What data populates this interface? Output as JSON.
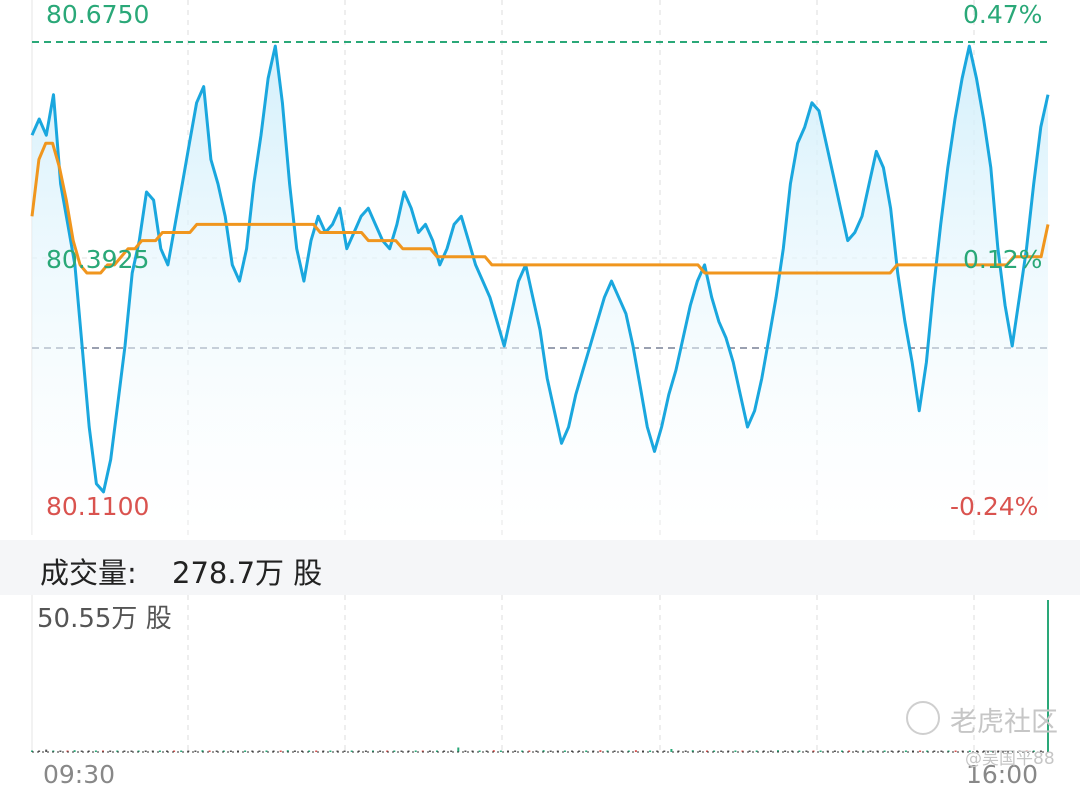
{
  "chart_data": [
    {
      "type": "line",
      "title": "",
      "y_axis_left_labels": [
        "80.6750",
        "80.3925",
        "80.1100"
      ],
      "y_axis_right_labels": [
        "0.47%",
        "0.12%",
        "-0.24%"
      ],
      "ylim": [
        80.11,
        80.675
      ],
      "reference_line_high": 80.675,
      "prev_close_line": 80.2975,
      "series": [
        {
          "color": "#1aa7de",
          "fill": "#e6f5fc",
          "values": [
            80.56,
            80.58,
            80.56,
            80.61,
            80.5,
            80.45,
            80.4,
            80.3,
            80.2,
            80.13,
            80.12,
            80.16,
            80.23,
            80.3,
            80.39,
            80.43,
            80.49,
            80.48,
            80.42,
            80.4,
            80.45,
            80.5,
            80.55,
            80.6,
            80.62,
            80.53,
            80.5,
            80.46,
            80.4,
            80.38,
            80.42,
            80.5,
            80.56,
            80.63,
            80.67,
            80.6,
            80.5,
            80.42,
            80.38,
            80.43,
            80.46,
            80.44,
            80.45,
            80.47,
            80.42,
            80.44,
            80.46,
            80.47,
            80.45,
            80.43,
            80.42,
            80.45,
            80.49,
            80.47,
            80.44,
            80.45,
            80.43,
            80.4,
            80.42,
            80.45,
            80.46,
            80.43,
            80.4,
            80.38,
            80.36,
            80.33,
            80.3,
            80.34,
            80.38,
            80.4,
            80.36,
            80.32,
            80.26,
            80.22,
            80.18,
            80.2,
            80.24,
            80.27,
            80.3,
            80.33,
            80.36,
            80.38,
            80.36,
            80.34,
            80.3,
            80.25,
            80.2,
            80.17,
            80.2,
            80.24,
            80.27,
            80.31,
            80.35,
            80.38,
            80.4,
            80.36,
            80.33,
            80.31,
            80.28,
            80.24,
            80.2,
            80.22,
            80.26,
            80.31,
            80.36,
            80.42,
            80.5,
            80.55,
            80.57,
            80.6,
            80.59,
            80.55,
            80.51,
            80.47,
            80.43,
            80.44,
            80.46,
            80.5,
            80.54,
            80.52,
            80.47,
            80.39,
            80.33,
            80.28,
            80.22,
            80.28,
            80.37,
            80.45,
            80.52,
            80.58,
            80.63,
            80.67,
            80.63,
            80.58,
            80.52,
            80.42,
            80.35,
            80.3,
            80.36,
            80.42,
            80.5,
            80.57,
            80.61
          ],
          "note": ""
        },
        {
          "color": "#f0961e",
          "values": [
            80.46,
            80.53,
            80.55,
            80.55,
            80.52,
            80.48,
            80.43,
            80.4,
            80.39,
            80.39,
            80.39,
            80.4,
            80.4,
            80.41,
            80.42,
            80.42,
            80.43,
            80.43,
            80.43,
            80.44,
            80.44,
            80.44,
            80.44,
            80.44,
            80.45,
            80.45,
            80.45,
            80.45,
            80.45,
            80.45,
            80.45,
            80.45,
            80.45,
            80.45,
            80.45,
            80.45,
            80.45,
            80.45,
            80.45,
            80.45,
            80.45,
            80.45,
            80.44,
            80.44,
            80.44,
            80.44,
            80.44,
            80.44,
            80.44,
            80.43,
            80.43,
            80.43,
            80.43,
            80.43,
            80.42,
            80.42,
            80.42,
            80.42,
            80.42,
            80.41,
            80.41,
            80.41,
            80.41,
            80.41,
            80.41,
            80.41,
            80.41,
            80.4,
            80.4,
            80.4,
            80.4,
            80.4,
            80.4,
            80.4,
            80.4,
            80.4,
            80.4,
            80.4,
            80.4,
            80.4,
            80.4,
            80.4,
            80.4,
            80.4,
            80.4,
            80.4,
            80.4,
            80.4,
            80.4,
            80.4,
            80.4,
            80.4,
            80.4,
            80.4,
            80.4,
            80.4,
            80.4,
            80.4,
            80.39,
            80.39,
            80.39,
            80.39,
            80.39,
            80.39,
            80.39,
            80.39,
            80.39,
            80.39,
            80.39,
            80.39,
            80.39,
            80.39,
            80.39,
            80.39,
            80.39,
            80.39,
            80.39,
            80.39,
            80.39,
            80.39,
            80.39,
            80.39,
            80.39,
            80.39,
            80.39,
            80.39,
            80.4,
            80.4,
            80.4,
            80.4,
            80.4,
            80.4,
            80.4,
            80.4,
            80.4,
            80.4,
            80.4,
            80.4,
            80.4,
            80.4,
            80.4,
            80.4,
            80.4,
            80.41,
            80.41,
            80.41,
            80.41,
            80.41,
            80.45
          ]
        }
      ],
      "x_labels": [
        "09:30",
        "16:00"
      ],
      "grid": true
    },
    {
      "type": "bar",
      "title": "成交量:",
      "total_volume": "278.7万 股",
      "max_label": "50.55万 股",
      "values": [
        0.4,
        0.3,
        0.8,
        0.3,
        0.5,
        0.4,
        0.6,
        0.3,
        0.4,
        0.3,
        0.5,
        0.3,
        0.4,
        0.3,
        0.3,
        0.4,
        0.5,
        0.3,
        0.3,
        0.4,
        0.4,
        0.3,
        0.5,
        0.4,
        0.6,
        0.3,
        0.2,
        0.4,
        0.3,
        0.5,
        0.3,
        0.4,
        0.3,
        0.4,
        0.5,
        0.3,
        0.6,
        0.3,
        0.4,
        0.3,
        0.3,
        0.4,
        0.5,
        0.4,
        0.3,
        0.3,
        0.4,
        0.5,
        0.4,
        0.3,
        0.3,
        0.4,
        0.3,
        0.5,
        0.3,
        0.4,
        0.3,
        0.3,
        0.4,
        0.5,
        1.5,
        0.4,
        0.3,
        0.5,
        0.4,
        0.6,
        0.4,
        0.3,
        0.4,
        0.5,
        0.4,
        0.3,
        0.6,
        0.4,
        0.5,
        0.3,
        0.4,
        0.4,
        0.3,
        0.5,
        0.6,
        0.4,
        0.3,
        0.4,
        0.5,
        0.6,
        0.4,
        0.3,
        0.4,
        0.5,
        1.0,
        0.4,
        0.3,
        0.6,
        0.4,
        0.5,
        0.3,
        0.4,
        0.5,
        0.4,
        0.3,
        0.4,
        0.5,
        0.3,
        0.4,
        0.6,
        0.4,
        0.3,
        0.5,
        0.4,
        0.3,
        0.4,
        0.5,
        0.3,
        0.4,
        0.3,
        0.4,
        0.5,
        0.3,
        0.4,
        0.3,
        0.4,
        0.5,
        0.3,
        0.4,
        0.3,
        0.4,
        0.3,
        0.4,
        0.5,
        0.3,
        0.4,
        0.3,
        0.4,
        0.5,
        0.3,
        0.4,
        0.3,
        0.4,
        0.3,
        0.4,
        0.3,
        0.5,
        50.55
      ],
      "colors_up": "#2aa878",
      "colors_down": "#d9534f"
    }
  ],
  "watermark": {
    "brand": "老虎社区",
    "user": "@吴国平88"
  }
}
